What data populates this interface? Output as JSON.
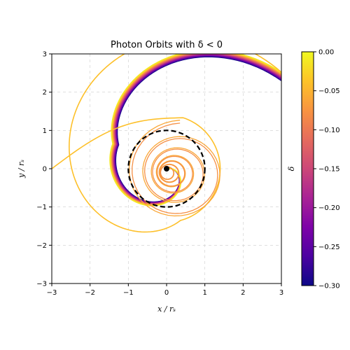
{
  "chart_data": {
    "type": "line",
    "title": "Photon Orbits with δ < 0",
    "xlabel": "x / rₛ",
    "ylabel": "y / rₛ",
    "xlim": [
      -3,
      3
    ],
    "ylim": [
      -3,
      3
    ],
    "xticks": [
      "−3",
      "−2",
      "−1",
      "0",
      "1",
      "2",
      "3"
    ],
    "yticks": [
      "−3",
      "−2",
      "−1",
      "0",
      "1",
      "2",
      "3"
    ],
    "grid": true,
    "colorbar": {
      "label": "δ",
      "range": [
        -0.3,
        0.0
      ],
      "ticks": [
        "0.00",
        "−0.05",
        "−0.10",
        "−0.15",
        "−0.20",
        "−0.25",
        "−0.30"
      ],
      "colormap": "plasma"
    },
    "reference_circle": {
      "center": [
        0,
        0
      ],
      "radius": 1.0,
      "style": "dashed",
      "color": "#000000"
    },
    "central_mass": {
      "x": 0,
      "y": 0,
      "color": "#000000"
    },
    "orbit_family": {
      "count": 24,
      "delta_min": -0.3,
      "delta_max": -0.012,
      "start_x": 3.0,
      "start_y_range": [
        2.3,
        2.52
      ]
    },
    "highlight_orbits": [
      {
        "delta": -0.04,
        "exit_point": [
          -3.0,
          0.0
        ]
      },
      {
        "delta": -0.06,
        "spiral": "inward"
      },
      {
        "delta": -0.08,
        "spiral": "inward"
      }
    ]
  }
}
